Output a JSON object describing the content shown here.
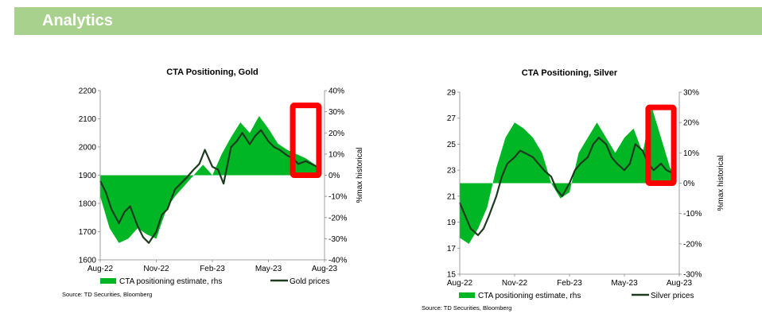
{
  "header": {
    "title": "Analytics"
  },
  "colors": {
    "banner": "#a9d18e",
    "cta_fill": "#00b624",
    "price_line": "#1f3a1f",
    "highlight": "#ff0000"
  },
  "chart_data": [
    {
      "type": "area",
      "title": "CTA Positioning, Gold",
      "xlabel": "",
      "ylabel_left": "",
      "ylabel_right": "%max historical",
      "x_ticks": [
        "Aug-22",
        "Nov-22",
        "Feb-23",
        "May-23",
        "Aug-23"
      ],
      "y_left_ticks": [
        "1600",
        "1700",
        "1800",
        "1900",
        "2000",
        "2100",
        "2200"
      ],
      "y_right_ticks": [
        "-40%",
        "-30%",
        "-20%",
        "-10%",
        "0%",
        "10%",
        "20%",
        "30%",
        "40%"
      ],
      "ylim_left": [
        1600,
        2200
      ],
      "ylim_right": [
        -40,
        40
      ],
      "x_range": [
        0,
        12
      ],
      "legend": {
        "placement": "bottom",
        "entries": [
          "CTA positioning estimate, rhs",
          "Gold prices"
        ]
      },
      "source": "Source: TD Securities, Bloomberg",
      "series": [
        {
          "name": "CTA positioning estimate, rhs",
          "axis": "right",
          "x": [
            0,
            0.5,
            1,
            1.5,
            2,
            2.5,
            3,
            3.3,
            3.6,
            4,
            4.5,
            5,
            5.5,
            6,
            6.5,
            7,
            7.5,
            8,
            8.5,
            9,
            9.5,
            10,
            10.5,
            11,
            11.5,
            11.8
          ],
          "values": [
            -10,
            -25,
            -32,
            -30,
            -25,
            -28,
            -30,
            -22,
            -15,
            -10,
            -5,
            0,
            5,
            0,
            10,
            18,
            25,
            20,
            28,
            22,
            15,
            12,
            10,
            8,
            5,
            3
          ]
        },
        {
          "name": "Gold prices",
          "axis": "left",
          "x": [
            0,
            0.3,
            0.6,
            1,
            1.3,
            1.6,
            2,
            2.3,
            2.6,
            3,
            3.3,
            3.6,
            4,
            4.3,
            4.6,
            5,
            5.3,
            5.6,
            6,
            6.3,
            6.6,
            7,
            7.3,
            7.6,
            8,
            8.3,
            8.6,
            9,
            9.3,
            9.6,
            10,
            10.3,
            10.6,
            11,
            11.3,
            11.6,
            11.8
          ],
          "values": [
            1880,
            1840,
            1780,
            1730,
            1770,
            1790,
            1720,
            1680,
            1660,
            1700,
            1760,
            1780,
            1850,
            1870,
            1890,
            1920,
            1940,
            1990,
            1930,
            1920,
            1870,
            2000,
            2020,
            2050,
            2010,
            2040,
            2060,
            2020,
            2000,
            1990,
            1970,
            1960,
            1940,
            1950,
            1940,
            1930,
            1920
          ]
        }
      ],
      "highlight": {
        "y_range_right": [
          0,
          33
        ],
        "x_range": [
          10.3,
          11.7
        ]
      }
    },
    {
      "type": "area",
      "title": "CTA Positioning, Silver",
      "xlabel": "",
      "ylabel_left": "",
      "ylabel_right": "%max historical",
      "x_ticks": [
        "Aug-22",
        "Nov-22",
        "Feb-23",
        "May-23",
        "Aug-23"
      ],
      "y_left_ticks": [
        "15",
        "17",
        "19",
        "21",
        "23",
        "25",
        "27",
        "29"
      ],
      "y_right_ticks": [
        "-30%",
        "-20%",
        "-10%",
        "0%",
        "10%",
        "20%",
        "30%"
      ],
      "ylim_left": [
        15,
        29
      ],
      "ylim_right": [
        -30,
        30
      ],
      "x_range": [
        0,
        12
      ],
      "legend": {
        "placement": "bottom",
        "entries": [
          "CTA positioning estimate, rhs",
          "Silver prices"
        ]
      },
      "source": "Source: TD Securities, Bloomberg",
      "series": [
        {
          "name": "CTA positioning estimate, rhs",
          "axis": "right",
          "x": [
            0,
            0.5,
            1,
            1.5,
            2,
            2.5,
            3,
            3.5,
            4,
            4.5,
            5,
            5.5,
            6,
            6.5,
            7,
            7.5,
            8,
            8.5,
            9,
            9.5,
            10,
            10.5,
            11,
            11.5,
            11.8
          ],
          "values": [
            -18,
            -20,
            -15,
            -8,
            5,
            15,
            20,
            18,
            15,
            10,
            0,
            -5,
            -3,
            10,
            15,
            20,
            15,
            10,
            15,
            18,
            10,
            25,
            15,
            5,
            2
          ]
        },
        {
          "name": "Silver prices",
          "axis": "left",
          "x": [
            0,
            0.3,
            0.6,
            1,
            1.3,
            1.6,
            2,
            2.3,
            2.6,
            3,
            3.3,
            3.6,
            4,
            4.3,
            4.6,
            5,
            5.3,
            5.6,
            6,
            6.3,
            6.6,
            7,
            7.3,
            7.6,
            8,
            8.3,
            8.6,
            9,
            9.3,
            9.6,
            10,
            10.3,
            10.6,
            11,
            11.3,
            11.6,
            11.8
          ],
          "values": [
            20.5,
            19.5,
            18.5,
            18.0,
            18.5,
            19.5,
            21.0,
            22.5,
            23.5,
            24.0,
            24.5,
            24.3,
            24.0,
            23.5,
            23.0,
            22.5,
            21.5,
            21.0,
            22.0,
            23.0,
            23.5,
            24.0,
            25.0,
            25.5,
            25.0,
            24.0,
            23.5,
            23.0,
            23.5,
            25.0,
            24.5,
            23.5,
            23.0,
            23.5,
            23.0,
            22.8,
            22.5
          ]
        }
      ],
      "highlight": {
        "y_range_right": [
          0,
          25
        ],
        "x_range": [
          10.3,
          11.7
        ]
      }
    }
  ]
}
